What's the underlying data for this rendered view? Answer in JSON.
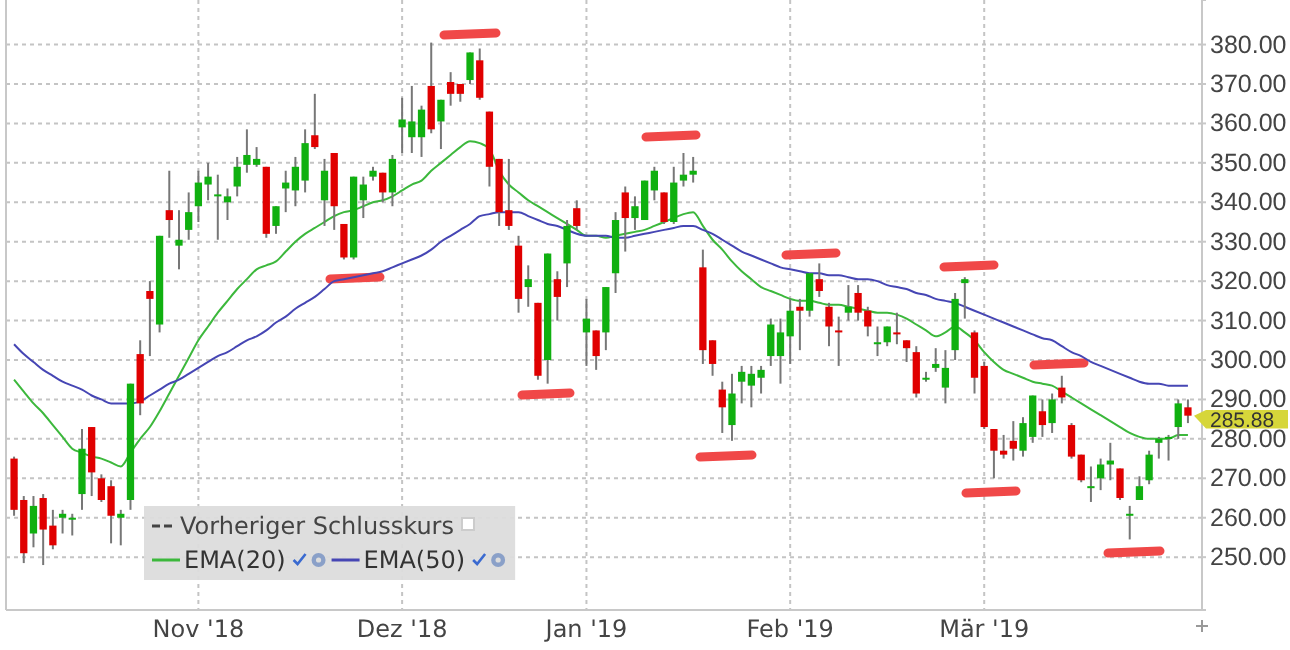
{
  "chart_data": {
    "type": "candlestick",
    "categories": [
      null,
      null,
      null,
      null,
      null,
      null,
      null,
      null,
      null,
      null,
      null,
      null,
      null,
      null,
      null,
      null,
      null,
      null,
      null,
      "Nov '18",
      null,
      null,
      null,
      null,
      null,
      null,
      null,
      null,
      null,
      null,
      null,
      null,
      null,
      null,
      null,
      null,
      null,
      null,
      null,
      null,
      "Dez '18",
      null,
      null,
      null,
      null,
      null,
      null,
      null,
      null,
      null,
      null,
      null,
      null,
      null,
      null,
      null,
      null,
      null,
      null,
      "Jan '19",
      null,
      null,
      null,
      null,
      null,
      null,
      null,
      null,
      null,
      null,
      null,
      null,
      null,
      null,
      null,
      null,
      null,
      null,
      null,
      null,
      "Feb '19",
      null,
      null,
      null,
      null,
      null,
      null,
      null,
      null,
      null,
      null,
      null,
      null,
      null,
      null,
      null,
      null,
      null,
      null,
      null,
      "Mär '19",
      null,
      null,
      null,
      null,
      null,
      null,
      null,
      null,
      null,
      null,
      null,
      null,
      null,
      null,
      null,
      null,
      null,
      null,
      null,
      null,
      null
    ],
    "ohlc": [
      [
        275,
        275.5,
        260.5,
        262
      ],
      [
        264.5,
        265.5,
        248.5,
        251
      ],
      [
        256,
        265.5,
        252.5,
        263
      ],
      [
        265,
        266,
        248,
        257
      ],
      [
        258,
        262,
        252,
        253
      ],
      [
        260,
        262,
        256,
        261
      ],
      [
        259.5,
        261,
        255.5,
        260
      ],
      [
        266,
        282.5,
        262,
        277.5
      ],
      [
        283,
        283,
        265.5,
        271.5
      ],
      [
        270,
        271,
        264,
        264.5
      ],
      [
        268,
        269.5,
        253.5,
        260.5
      ],
      [
        260,
        262,
        253,
        261
      ],
      [
        264.5,
        294,
        262,
        294
      ],
      [
        301.5,
        305,
        286,
        289
      ],
      [
        317.5,
        320,
        301,
        315.5
      ],
      [
        309,
        331.5,
        307,
        331.5
      ],
      [
        338,
        348,
        331,
        335.5
      ],
      [
        329,
        338,
        323,
        330.5
      ],
      [
        333,
        342.5,
        330.5,
        337.5
      ],
      [
        339,
        348,
        335,
        345
      ],
      [
        344.5,
        350,
        340.5,
        346.5
      ],
      [
        341.5,
        347,
        330.5,
        342
      ],
      [
        340,
        343.5,
        335.5,
        341.5
      ],
      [
        344,
        351.5,
        341.5,
        349
      ],
      [
        349.5,
        358.5,
        347.5,
        352
      ],
      [
        349.5,
        354,
        349,
        351
      ],
      [
        349,
        349,
        331,
        332
      ],
      [
        334,
        339,
        332,
        339
      ],
      [
        343.5,
        348,
        337.5,
        345
      ],
      [
        343,
        351.5,
        339,
        349
      ],
      [
        345.5,
        358.5,
        342.5,
        355
      ],
      [
        357,
        367.5,
        353.5,
        354
      ],
      [
        340.5,
        351,
        334,
        348
      ],
      [
        352.5,
        352.5,
        333,
        339
      ],
      [
        334.5,
        334.5,
        325.5,
        326
      ],
      [
        326,
        346.5,
        325.5,
        346.5
      ],
      [
        340.5,
        346.5,
        336,
        344.5
      ],
      [
        346.5,
        349,
        345.5,
        348
      ],
      [
        347.5,
        347.5,
        340,
        342.5
      ],
      [
        342.5,
        352,
        339,
        351
      ],
      [
        359,
        366.5,
        352.5,
        361
      ],
      [
        356.5,
        369.5,
        352.5,
        360.5
      ],
      [
        356.5,
        364.5,
        351.5,
        363.5
      ],
      [
        369.5,
        380.5,
        357.5,
        358.5
      ],
      [
        360.5,
        366,
        353.5,
        366
      ],
      [
        370.5,
        373,
        364.5,
        367.5
      ],
      [
        370,
        370,
        365.5,
        367.5
      ],
      [
        371,
        378,
        370,
        378
      ],
      [
        376,
        379,
        366,
        366.5
      ],
      [
        363,
        363,
        344,
        349
      ],
      [
        351,
        351,
        334,
        337.5
      ],
      [
        338,
        351,
        333,
        334
      ],
      [
        329,
        331.5,
        312,
        315.5
      ],
      [
        318.5,
        324,
        313.5,
        320.5
      ],
      [
        314.5,
        314.5,
        295,
        296
      ],
      [
        300,
        327,
        294,
        327
      ],
      [
        320.5,
        322.5,
        310,
        316
      ],
      [
        324.5,
        335.5,
        318.5,
        334
      ],
      [
        338.5,
        340.5,
        333,
        334
      ],
      [
        307,
        315.5,
        298.5,
        310.5
      ],
      [
        307.5,
        307.5,
        297.5,
        301
      ],
      [
        307,
        318.5,
        302.5,
        318.5
      ],
      [
        322,
        337.5,
        317,
        335.5
      ],
      [
        342.5,
        344,
        327.5,
        336
      ],
      [
        336,
        341.5,
        333,
        339
      ],
      [
        335.5,
        345.5,
        335.5,
        345.5
      ],
      [
        343,
        349,
        340.5,
        348
      ],
      [
        342.5,
        342.5,
        334.5,
        335
      ],
      [
        335,
        349,
        334.5,
        345
      ],
      [
        345.5,
        352.5,
        344,
        347
      ],
      [
        347,
        351.5,
        345,
        348
      ],
      [
        323.5,
        328,
        299,
        302.5
      ],
      [
        305,
        305,
        296,
        299
      ],
      [
        292.5,
        294.5,
        281.5,
        288
      ],
      [
        283.5,
        296.5,
        279.5,
        291.5
      ],
      [
        294.5,
        298.5,
        289,
        297
      ],
      [
        293.5,
        298.5,
        288,
        296.5
      ],
      [
        295.5,
        298.5,
        291.5,
        297.5
      ],
      [
        301,
        310.5,
        298.5,
        309
      ],
      [
        301,
        310.5,
        294,
        307
      ],
      [
        306,
        315.5,
        299,
        312.5
      ],
      [
        313.5,
        315.5,
        302.5,
        312.5
      ],
      [
        312.5,
        322,
        311,
        322
      ],
      [
        320.5,
        324.5,
        316,
        317.5
      ],
      [
        313.5,
        314.5,
        303.5,
        308.5
      ],
      [
        307.5,
        311,
        298.5,
        307
      ],
      [
        312,
        319,
        310,
        313.5
      ],
      [
        317,
        319,
        310,
        312
      ],
      [
        312.5,
        313.5,
        306,
        308.5
      ],
      [
        304,
        308.5,
        301,
        304.5
      ],
      [
        304.5,
        308.5,
        303.5,
        308.5
      ],
      [
        307,
        312,
        304,
        306.5
      ],
      [
        305,
        305,
        299.5,
        303
      ],
      [
        302,
        303.5,
        290.5,
        291.5
      ],
      [
        295,
        297,
        294.5,
        295.5
      ],
      [
        298,
        303,
        297,
        299
      ],
      [
        293,
        302.5,
        289,
        298
      ],
      [
        302.5,
        317,
        300,
        315.5
      ],
      [
        319.5,
        321,
        310.5,
        320.5
      ],
      [
        307,
        307.5,
        291.5,
        295.5
      ],
      [
        298.5,
        299.5,
        282.5,
        283
      ],
      [
        282.5,
        282.5,
        270,
        277
      ],
      [
        277,
        281,
        275,
        276
      ],
      [
        279.5,
        284.5,
        274.5,
        277.5
      ],
      [
        277,
        285.5,
        275.5,
        284
      ],
      [
        280.5,
        291,
        279,
        291
      ],
      [
        287,
        290,
        280.5,
        283.5
      ],
      [
        284,
        291.5,
        281.5,
        290
      ],
      [
        293,
        296,
        289,
        290.5
      ],
      [
        283.5,
        284,
        275,
        275.5
      ],
      [
        276,
        276,
        269,
        269.5
      ],
      [
        267.5,
        273,
        264,
        268
      ],
      [
        270,
        275,
        267,
        273.5
      ],
      [
        273.5,
        279,
        269.5,
        274.5
      ],
      [
        272.5,
        272.5,
        264.5,
        265
      ],
      [
        260.5,
        263,
        254.5,
        261
      ],
      [
        264.5,
        270.5,
        264.5,
        268
      ],
      [
        269.5,
        277,
        268.5,
        276
      ],
      [
        279,
        280.5,
        275,
        280
      ],
      [
        280,
        281,
        274.5,
        280.5
      ],
      [
        283,
        290,
        280,
        289
      ],
      [
        288,
        290,
        284,
        285.88
      ]
    ],
    "series": [
      {
        "type": "line",
        "name": "EMA(20)",
        "color": "#3cb83c",
        "values": [
          295,
          292,
          289,
          286.5,
          283.5,
          280.5,
          277.5,
          276.5,
          275.5,
          275,
          274,
          273,
          276.5,
          280,
          283,
          287,
          291.5,
          296,
          300.5,
          305,
          308.5,
          312,
          315,
          318,
          320.5,
          323,
          324,
          325,
          327.5,
          330,
          332,
          333.5,
          335,
          336.5,
          337.5,
          338,
          339,
          340,
          340.5,
          341.5,
          343,
          344.5,
          345.5,
          348,
          350,
          352,
          354,
          355.5,
          355,
          353.5,
          348,
          344.5,
          342.5,
          340.5,
          339,
          337.5,
          336,
          334.5,
          333,
          331.5,
          331.5,
          331,
          331.5,
          332,
          332.5,
          333,
          334,
          335,
          336,
          337,
          337.5,
          334,
          330.5,
          328,
          325,
          322.5,
          320.5,
          318.5,
          317.5,
          316.5,
          315.5,
          315,
          315,
          314.5,
          314,
          314,
          313.5,
          313,
          312.5,
          312,
          312,
          311.5,
          310.5,
          309,
          307.5,
          306,
          307,
          308.5,
          307,
          305,
          302,
          299.5,
          297.5,
          296.5,
          295.5,
          294.5,
          294,
          293.5,
          292,
          290.5,
          289,
          287.5,
          286,
          284.5,
          283,
          281.5,
          280.5,
          280,
          280,
          280,
          281,
          281
        ]
      },
      {
        "type": "line",
        "name": "EMA(50)",
        "color": "#4646b4",
        "values": [
          304,
          301.5,
          299.5,
          297.5,
          296,
          294.5,
          293.5,
          292.5,
          291,
          290,
          289,
          289,
          289,
          289.5,
          291,
          292.5,
          294,
          295,
          296.5,
          298,
          299.5,
          301,
          302,
          303.5,
          305,
          306,
          307.5,
          309.5,
          311,
          313,
          314.5,
          316,
          318,
          320,
          320.5,
          321,
          321.5,
          322,
          322.5,
          323.5,
          324.5,
          325.5,
          326.5,
          328,
          330,
          331.5,
          333,
          334.5,
          336.5,
          337,
          337.5,
          337.5,
          337.5,
          336.5,
          335.5,
          334.5,
          334,
          333,
          332,
          331.5,
          331.5,
          331.5,
          331,
          331,
          331.5,
          332,
          332.5,
          333,
          333.5,
          334,
          334,
          333,
          332,
          330.5,
          329,
          327.5,
          326.5,
          325.5,
          324.5,
          323.5,
          323,
          322.5,
          322,
          322,
          321.5,
          321.5,
          321,
          320.5,
          320.5,
          320,
          319,
          318.5,
          318,
          317,
          316.5,
          315.5,
          315,
          314.5,
          313.5,
          312.5,
          311.5,
          310.5,
          309.5,
          308.5,
          307.5,
          306.5,
          305.5,
          305,
          303.5,
          302,
          301,
          299.5,
          298.5,
          297.5,
          296.5,
          295.5,
          294.5,
          294,
          294,
          293.5,
          293.5,
          293.5
        ]
      }
    ],
    "ylim": [
      236.6,
      391.3
    ],
    "yticks": [
      {
        "value": 250,
        "label": "250.00"
      },
      {
        "value": 260,
        "label": "260.00"
      },
      {
        "value": 270,
        "label": "270.00"
      },
      {
        "value": 280,
        "label": "280.00"
      },
      {
        "value": 290,
        "label": "290.00"
      },
      {
        "value": 300,
        "label": "300.00"
      },
      {
        "value": 310,
        "label": "310.00"
      },
      {
        "value": 320,
        "label": "320.00"
      },
      {
        "value": 330,
        "label": "330.00"
      },
      {
        "value": 340,
        "label": "340.00"
      },
      {
        "value": 350,
        "label": "350.00"
      },
      {
        "value": 360,
        "label": "360.00"
      },
      {
        "value": 370,
        "label": "370.00"
      },
      {
        "value": 380,
        "label": "380.00"
      }
    ],
    "grid": true,
    "legend": "bottom left",
    "annotations": [
      "Vorheriger Schlusskurs",
      "285.88"
    ]
  }
}
